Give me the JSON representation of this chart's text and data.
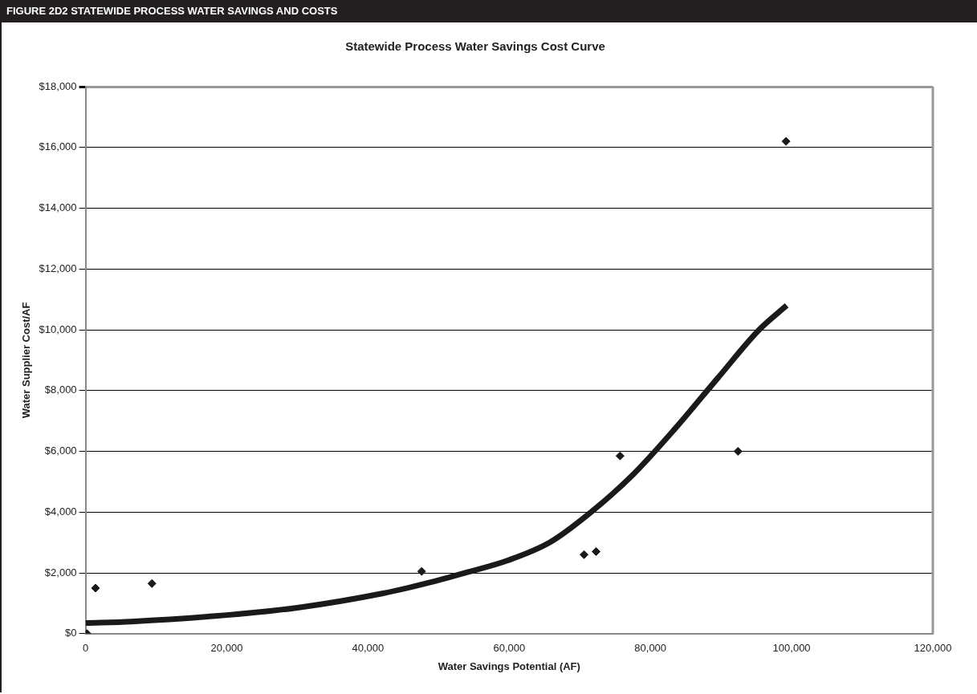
{
  "chart_data": {
    "type": "scatter",
    "title": "FIGURE 2D2 STATEWIDE PROCESS WATER SAVINGS AND COSTS",
    "subtitle": "Statewide Process Water Savings Cost Curve",
    "xlabel": "Water Savings Potential (AF)",
    "ylabel": "Water Supplier Cost/AF",
    "xlim": [
      0,
      120000
    ],
    "xticks": [
      0,
      {
        "value": 20000,
        "label": "20,000"
      },
      {
        "value": 40000,
        "label": "40,000"
      },
      {
        "value": 60000,
        "label": "60,000"
      },
      {
        "value": 80000,
        "label": "80,000"
      },
      {
        "value": 100000,
        "label": "100,000"
      },
      {
        "value": 120000,
        "label": "120,000"
      }
    ],
    "ylim": [
      0,
      18000
    ],
    "yticks": [
      {
        "value": 0,
        "label": "$0"
      },
      {
        "value": 2000,
        "label": "$2,000"
      },
      {
        "value": 4000,
        "label": "$4,000"
      },
      {
        "value": 6000,
        "label": "$6,000"
      },
      {
        "value": 8000,
        "label": "$8,000"
      },
      {
        "value": 10000,
        "label": "$10,000"
      },
      {
        "value": 12000,
        "label": "$12,000"
      },
      {
        "value": 14000,
        "label": "$14,000"
      },
      {
        "value": 16000,
        "label": "$16,000"
      },
      {
        "value": 18000,
        "label": "$18,000"
      }
    ],
    "grid": "y",
    "legend": false,
    "series": [
      {
        "type": "scatter",
        "color": "#1a1a1a",
        "marker": "diamond",
        "x": [
          200,
          1400,
          9400,
          47600,
          70600,
          72300,
          75700,
          92400,
          99200
        ],
        "values": [
          0,
          1500,
          1650,
          2050,
          2600,
          2700,
          5850,
          6000,
          16200
        ]
      },
      {
        "type": "line",
        "color": "#1a1a1a",
        "marker": "none",
        "x": [
          0,
          6500,
          18400,
          30200,
          42000,
          48000,
          53900,
          59800,
          65800,
          71700,
          77600,
          83500,
          89500,
          95400,
          99300
        ],
        "values": [
          350,
          400,
          580,
          860,
          1320,
          1640,
          2010,
          2410,
          3010,
          4020,
          5250,
          6750,
          8400,
          10000,
          10800
        ]
      }
    ]
  }
}
